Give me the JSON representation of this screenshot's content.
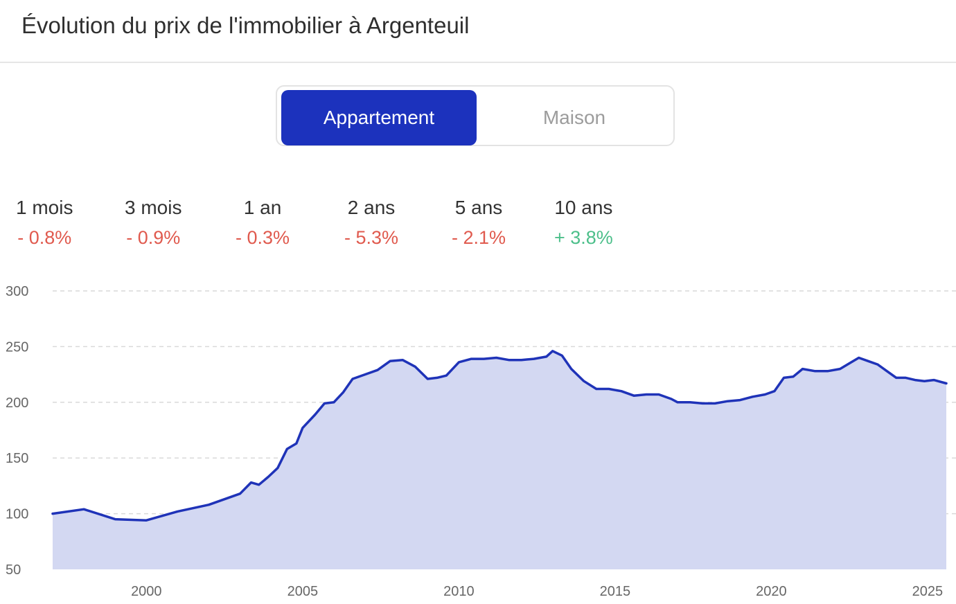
{
  "header": {
    "title": "Évolution du prix de l'immobilier à Argenteuil"
  },
  "toggle": {
    "options": [
      {
        "label": "Appartement",
        "active": true
      },
      {
        "label": "Maison",
        "active": false
      }
    ],
    "active_color": "#1c32bd"
  },
  "stats": [
    {
      "label": "1 mois",
      "value": "- 0.8%",
      "trend": "down"
    },
    {
      "label": "3 mois",
      "value": "- 0.9%",
      "trend": "down"
    },
    {
      "label": "1 an",
      "value": "- 0.3%",
      "trend": "down"
    },
    {
      "label": "2 ans",
      "value": "- 5.3%",
      "trend": "down"
    },
    {
      "label": "5 ans",
      "value": "- 2.1%",
      "trend": "down"
    },
    {
      "label": "10 ans",
      "value": "+ 3.8%",
      "trend": "up"
    }
  ],
  "colors": {
    "down": "#e05a4e",
    "up": "#4cbf8a",
    "line": "#1f33b8",
    "fill": "#d3d8f2",
    "grid": "#d9d9d9"
  },
  "chart_data": {
    "type": "area",
    "xlim": [
      1997,
      2025.6
    ],
    "ylim": [
      50,
      300
    ],
    "yticks": [
      50,
      100,
      150,
      200,
      250,
      300
    ],
    "xticks": [
      2000,
      2005,
      2010,
      2015,
      2020,
      2025
    ],
    "grid": true,
    "series": [
      {
        "x": [
          1997.0,
          1998.0,
          1999.0,
          2000.0,
          2001.0,
          2002.0,
          2003.0,
          2003.35,
          2003.6,
          2003.9,
          2004.2,
          2004.5,
          2004.8,
          2005.0,
          2005.4,
          2005.7,
          2006.0,
          2006.3,
          2006.6,
          2007.0,
          2007.4,
          2007.8,
          2008.2,
          2008.6,
          2009.0,
          2009.3,
          2009.6,
          2010.0,
          2010.4,
          2010.8,
          2011.2,
          2011.6,
          2012.0,
          2012.4,
          2012.8,
          2013.0,
          2013.3,
          2013.6,
          2014.0,
          2014.4,
          2014.8,
          2015.2,
          2015.6,
          2016.0,
          2016.4,
          2016.8,
          2017.0,
          2017.4,
          2017.8,
          2018.2,
          2018.6,
          2019.0,
          2019.4,
          2019.8,
          2020.1,
          2020.4,
          2020.7,
          2021.0,
          2021.4,
          2021.8,
          2022.2,
          2022.5,
          2022.8,
          2023.1,
          2023.4,
          2023.7,
          2024.0,
          2024.3,
          2024.6,
          2024.9,
          2025.2,
          2025.6
        ],
        "y": [
          100,
          104,
          95,
          94,
          102,
          108,
          118,
          128,
          126,
          133,
          141,
          158,
          163,
          177,
          189,
          199,
          200,
          209,
          221,
          225,
          229,
          237,
          238,
          232,
          221,
          222,
          224,
          236,
          239,
          239,
          240,
          238,
          238,
          239,
          241,
          246,
          242,
          230,
          219,
          212,
          212,
          210,
          206,
          207,
          207,
          203,
          200,
          200,
          199,
          199,
          201,
          202,
          205,
          207,
          210,
          222,
          223,
          230,
          228,
          228,
          230,
          235,
          240,
          237,
          234,
          228,
          222,
          222,
          220,
          219,
          220,
          217
        ]
      }
    ]
  }
}
